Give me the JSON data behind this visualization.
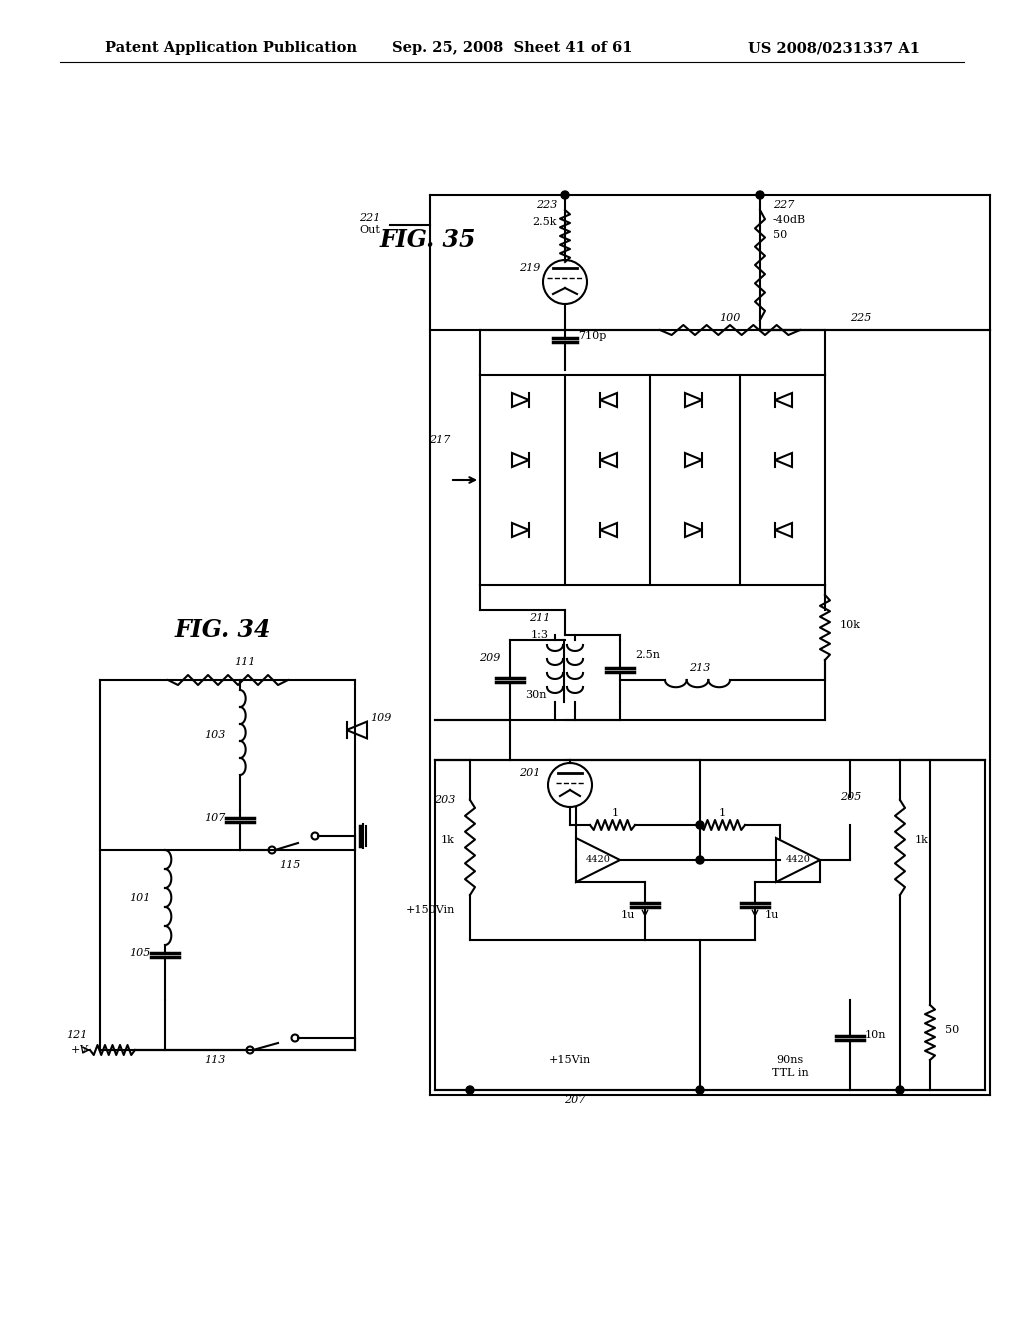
{
  "background_color": "#ffffff",
  "header_left": "Patent Application Publication",
  "header_center": "Sep. 25, 2008  Sheet 41 of 61",
  "header_right": "US 2008/0231337 A1",
  "fig34_label": "FIG. 34",
  "fig35_label": "FIG. 35",
  "line_color": "#000000",
  "text_color": "#000000"
}
